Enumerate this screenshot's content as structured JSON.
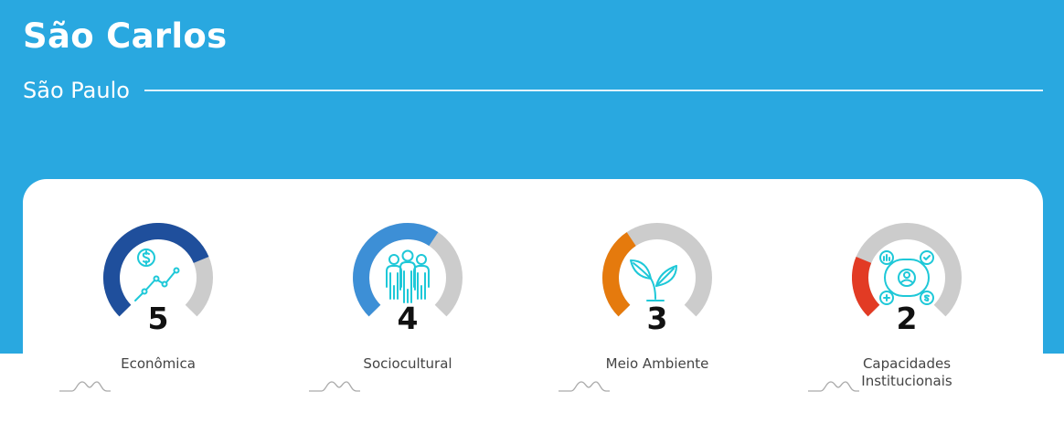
{
  "header": {
    "city": "São Carlos",
    "state": "São Paulo"
  },
  "colors": {
    "header_bg": "#29a8e0",
    "track": "#cccccc",
    "icon": "#1ec8d8"
  },
  "indicators": [
    {
      "label": "Econômica",
      "score": "5",
      "level": 0.75,
      "color": "#1f4f9c",
      "icon": "money-growth-icon"
    },
    {
      "label": "Sociocultural",
      "score": "4",
      "level": 0.625,
      "color": "#3d8fd6",
      "icon": "people-group-icon"
    },
    {
      "label": "Meio Ambiente",
      "score": "3",
      "level": 0.375,
      "color": "#e57a0d",
      "icon": "leaf-sprout-icon"
    },
    {
      "label": "Capacidades Institucionais",
      "score": "2",
      "level": 0.25,
      "color": "#e23b24",
      "icon": "network-icon"
    }
  ]
}
